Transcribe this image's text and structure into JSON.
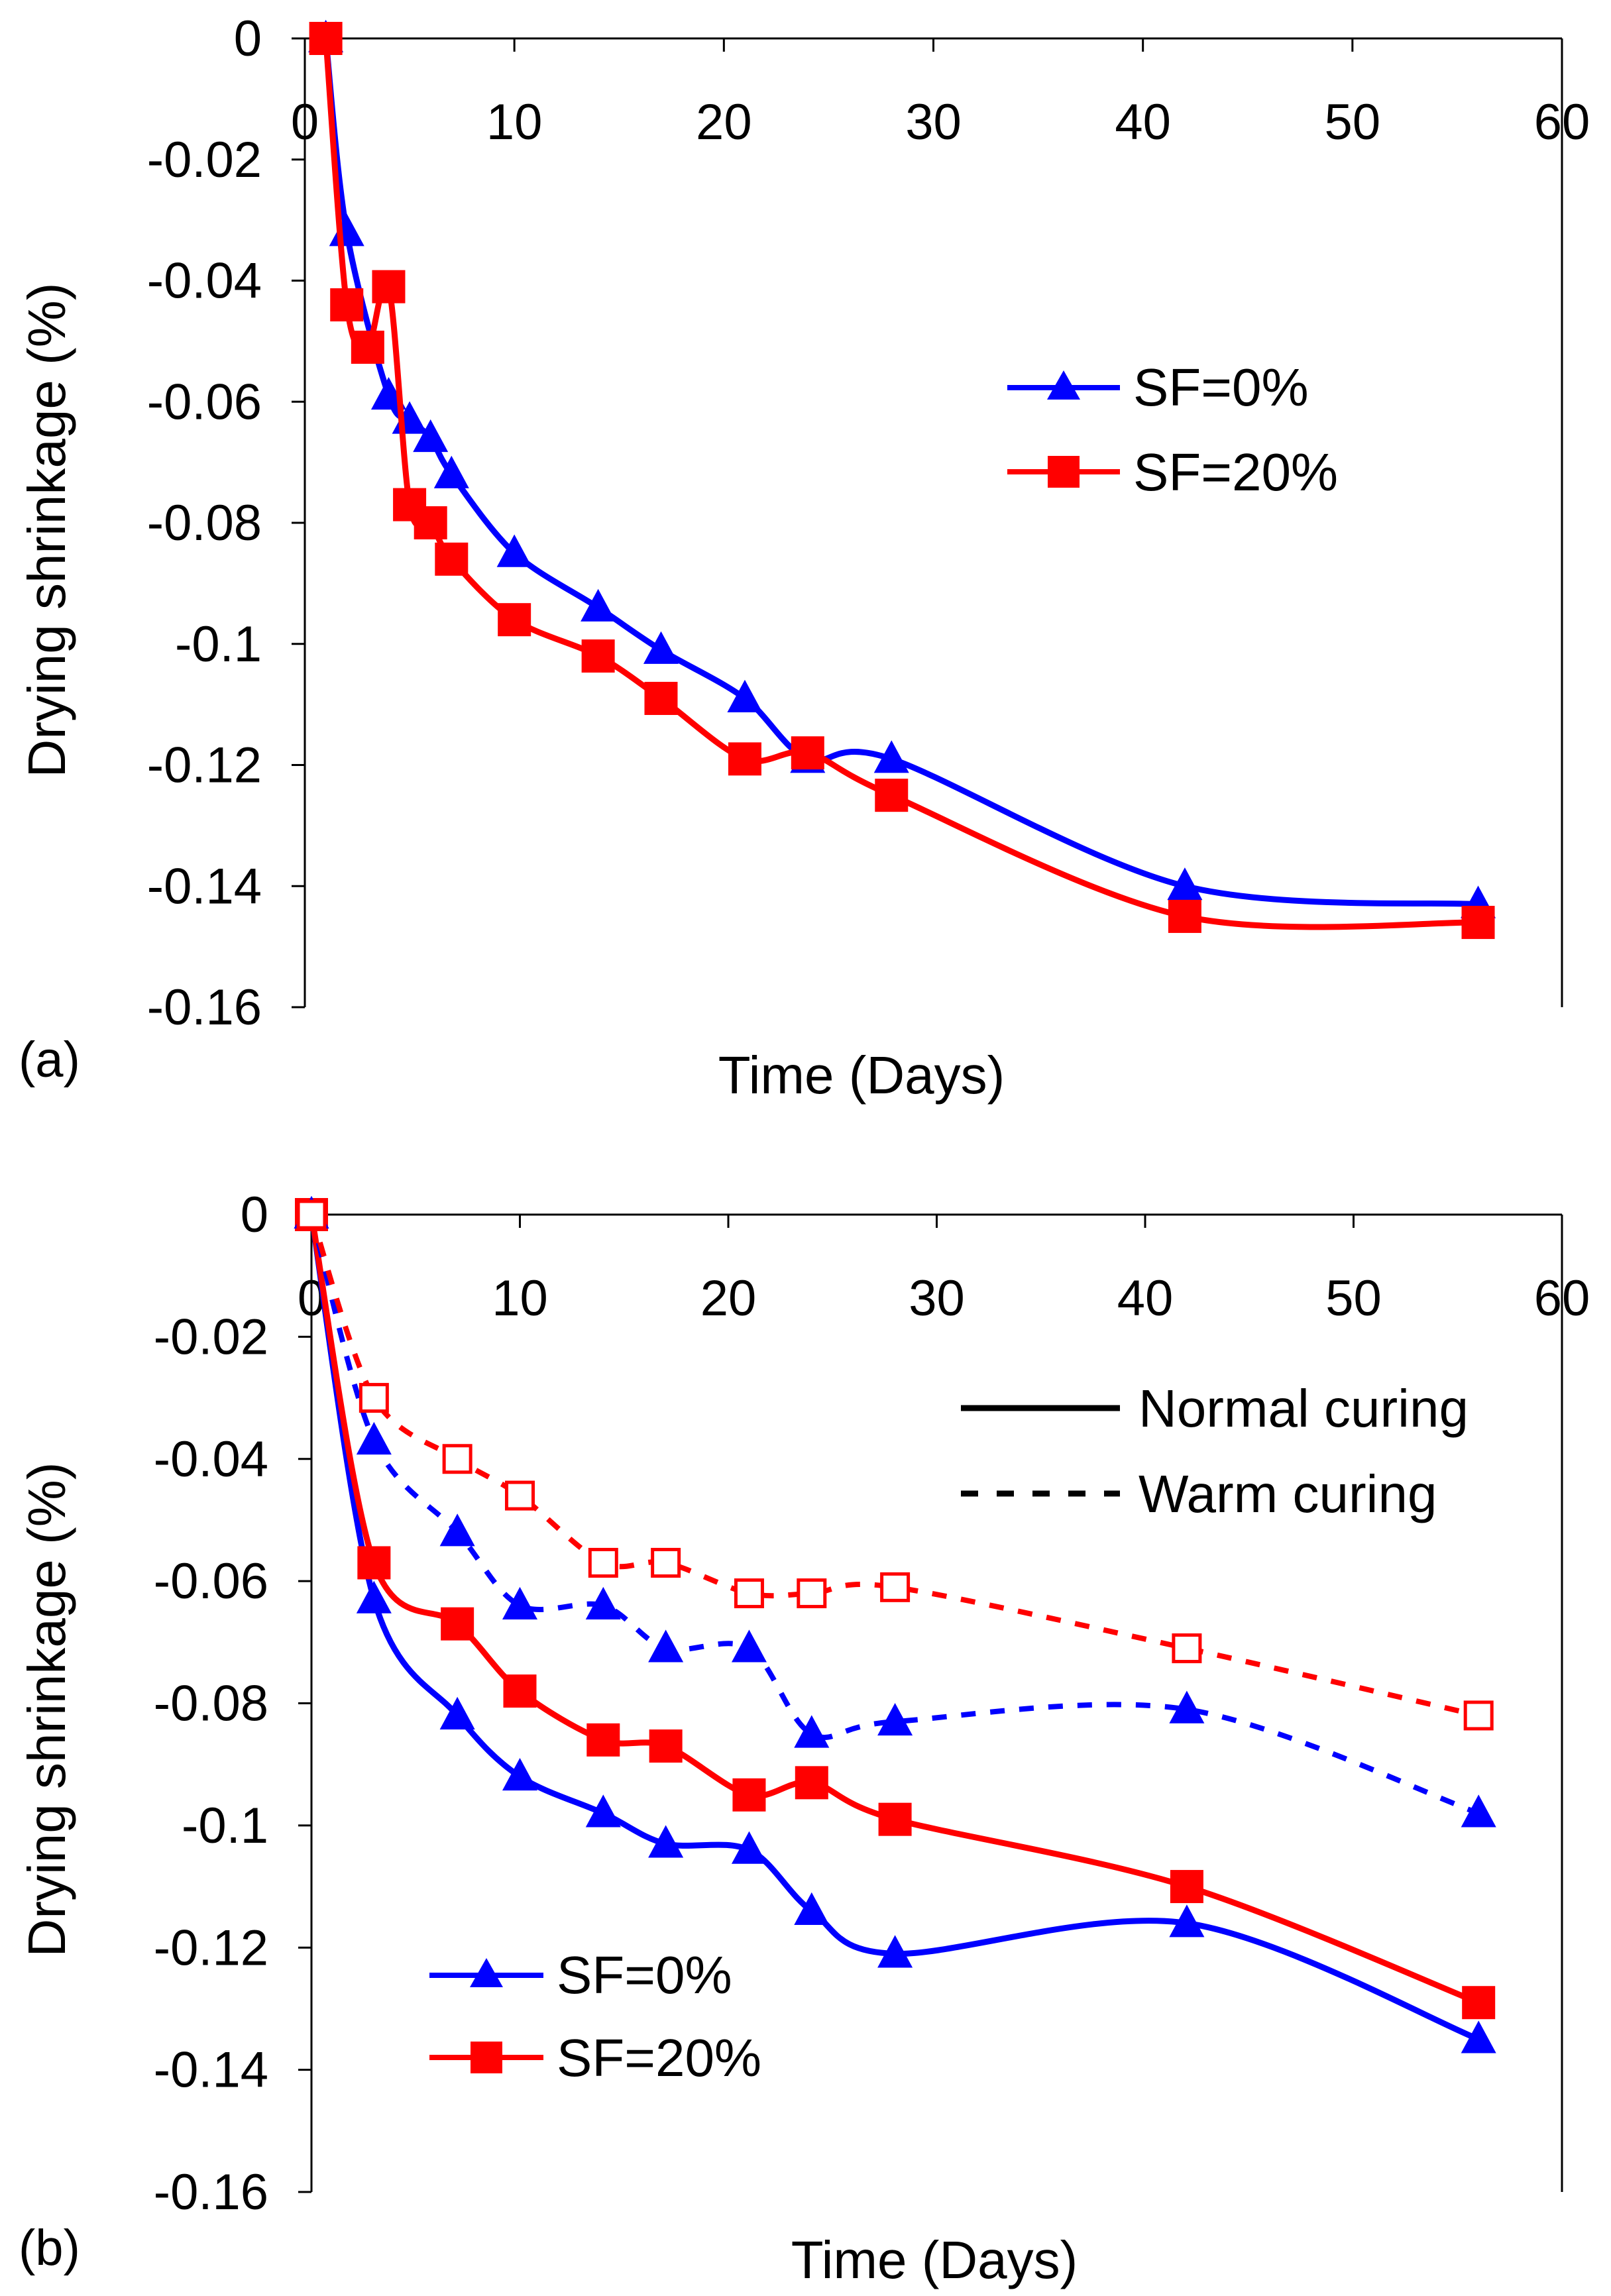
{
  "chart_data": [
    {
      "type": "line",
      "panel_label": "(a)",
      "xlabel": "Time (Days)",
      "ylabel": "Drying shrinkage (%)",
      "xlim": [
        0,
        60
      ],
      "ylim": [
        -0.16,
        0
      ],
      "x_ticks": [
        "0",
        "10",
        "20",
        "30",
        "40",
        "50",
        "60"
      ],
      "y_ticks": [
        "0",
        "-0.02",
        "-0.04",
        "-0.06",
        "-0.08",
        "-0.1",
        "-0.12",
        "-0.14",
        "-0.16"
      ],
      "series": [
        {
          "name": "SF=0%",
          "color": "#0000FF",
          "marker": "triangle",
          "filled": true,
          "dashed": false,
          "x": [
            1,
            2,
            4,
            5,
            6,
            7,
            10,
            14,
            17,
            21,
            24,
            28,
            42,
            56
          ],
          "y": [
            0,
            -0.032,
            -0.059,
            -0.063,
            -0.066,
            -0.072,
            -0.085,
            -0.094,
            -0.101,
            -0.109,
            -0.119,
            -0.119,
            -0.14,
            -0.143
          ]
        },
        {
          "name": "SF=20%",
          "color": "#FF0000",
          "marker": "square",
          "filled": true,
          "dashed": false,
          "x": [
            1,
            2,
            3,
            4,
            5,
            6,
            7,
            10,
            14,
            17,
            21,
            24,
            28,
            42,
            56
          ],
          "y": [
            0,
            -0.044,
            -0.051,
            -0.041,
            -0.077,
            -0.08,
            -0.086,
            -0.096,
            -0.102,
            -0.109,
            -0.119,
            -0.118,
            -0.125,
            -0.145,
            -0.146
          ]
        }
      ],
      "legend": {
        "position": "middle-right",
        "entries": [
          {
            "label": "SF=0%",
            "color": "#0000FF",
            "marker": "triangle"
          },
          {
            "label": "SF=20%",
            "color": "#FF0000",
            "marker": "square"
          }
        ]
      }
    },
    {
      "type": "line",
      "panel_label": "(b)",
      "xlabel": "Time (Days)",
      "ylabel": "Drying shrinkage (%)",
      "xlim": [
        0,
        60
      ],
      "ylim": [
        -0.16,
        0
      ],
      "x_ticks": [
        "0",
        "10",
        "20",
        "30",
        "40",
        "50",
        "60"
      ],
      "y_ticks": [
        "0",
        "-0.02",
        "-0.04",
        "-0.06",
        "-0.08",
        "-0.1",
        "-0.12",
        "-0.14",
        "-0.16"
      ],
      "series": [
        {
          "name": "SF=0% (Normal curing)",
          "color": "#0000FF",
          "marker": "triangle",
          "filled": true,
          "dashed": false,
          "x": [
            0,
            3,
            7,
            10,
            14,
            17,
            21,
            24,
            28,
            42,
            56
          ],
          "y": [
            0,
            -0.063,
            -0.082,
            -0.092,
            -0.098,
            -0.103,
            -0.104,
            -0.114,
            -0.121,
            -0.116,
            -0.135
          ]
        },
        {
          "name": "SF=20% (Normal curing)",
          "color": "#FF0000",
          "marker": "square",
          "filled": true,
          "dashed": false,
          "x": [
            0,
            3,
            7,
            10,
            14,
            17,
            21,
            24,
            28,
            42,
            56
          ],
          "y": [
            0,
            -0.057,
            -0.067,
            -0.078,
            -0.086,
            -0.087,
            -0.095,
            -0.093,
            -0.099,
            -0.11,
            -0.129
          ]
        },
        {
          "name": "SF=0% (Warm curing)",
          "color": "#0000FF",
          "marker": "triangle",
          "filled": true,
          "dashed": true,
          "x": [
            0,
            3,
            7,
            10,
            14,
            17,
            21,
            24,
            28,
            42,
            56
          ],
          "y": [
            0,
            -0.037,
            -0.052,
            -0.064,
            -0.064,
            -0.071,
            -0.071,
            -0.085,
            -0.083,
            -0.081,
            -0.098
          ]
        },
        {
          "name": "SF=20% (Warm curing)",
          "color": "#FF0000",
          "marker": "square",
          "filled": false,
          "dashed": true,
          "x": [
            0,
            3,
            7,
            10,
            14,
            17,
            21,
            24,
            28,
            42,
            56
          ],
          "y": [
            0,
            -0.03,
            -0.04,
            -0.046,
            -0.057,
            -0.057,
            -0.062,
            -0.062,
            -0.061,
            -0.071,
            -0.082
          ]
        }
      ],
      "style_legend": {
        "position": "top-right",
        "entries": [
          {
            "label": "Normal curing",
            "dashed": false
          },
          {
            "label": "Warm curing",
            "dashed": true
          }
        ]
      },
      "legend": {
        "position": "bottom-left",
        "entries": [
          {
            "label": "SF=0%",
            "color": "#0000FF",
            "marker": "triangle"
          },
          {
            "label": "SF=20%",
            "color": "#FF0000",
            "marker": "square"
          }
        ]
      }
    }
  ]
}
